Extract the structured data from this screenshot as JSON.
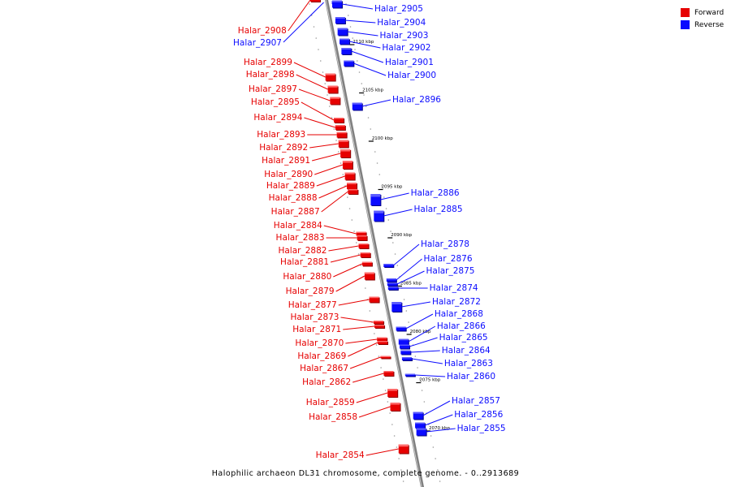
{
  "legend": {
    "forward_label": "Forward",
    "reverse_label": "Reverse",
    "forward_color": "#e60000",
    "reverse_color": "#0b0bff"
  },
  "caption": "Halophilic archaeon DL31 chromosome, complete genome. - 0..2913689",
  "scale_labels": [
    {
      "text": "2110 kbp",
      "pos": 2110
    },
    {
      "text": "2105 kbp",
      "pos": 2105
    },
    {
      "text": "2100 kbp",
      "pos": 2100
    },
    {
      "text": "2095 kbp",
      "pos": 2095
    },
    {
      "text": "2090 kbp",
      "pos": 2090
    },
    {
      "text": "2085 kbp",
      "pos": 2085
    },
    {
      "text": "2080 kbp",
      "pos": 2080
    },
    {
      "text": "2075 kbp",
      "pos": 2075
    },
    {
      "text": "2070 kbp",
      "pos": 2070
    }
  ],
  "genes_forward": [
    "Halar_2908",
    "Halar_2899",
    "Halar_2898",
    "Halar_2897",
    "Halar_2895",
    "Halar_2894",
    "Halar_2893",
    "Halar_2892",
    "Halar_2891",
    "Halar_2890",
    "Halar_2889",
    "Halar_2888",
    "Halar_2887",
    "Halar_2884",
    "Halar_2883",
    "Halar_2882",
    "Halar_2881",
    "Halar_2880",
    "Halar_2879",
    "Halar_2877",
    "Halar_2873",
    "Halar_2871",
    "Halar_2870",
    "Halar_2869",
    "Halar_2867",
    "Halar_2862",
    "Halar_2859",
    "Halar_2858",
    "Halar_2854"
  ],
  "genes_reverse": [
    "Halar_2907",
    "Halar_2905",
    "Halar_2904",
    "Halar_2903",
    "Halar_2902",
    "Halar_2901",
    "Halar_2900",
    "Halar_2896",
    "Halar_2886",
    "Halar_2885",
    "Halar_2878",
    "Halar_2876",
    "Halar_2875",
    "Halar_2874",
    "Halar_2872",
    "Halar_2868",
    "Halar_2866",
    "Halar_2865",
    "Halar_2864",
    "Halar_2863",
    "Halar_2860",
    "Halar_2857",
    "Halar_2856",
    "Halar_2855"
  ]
}
